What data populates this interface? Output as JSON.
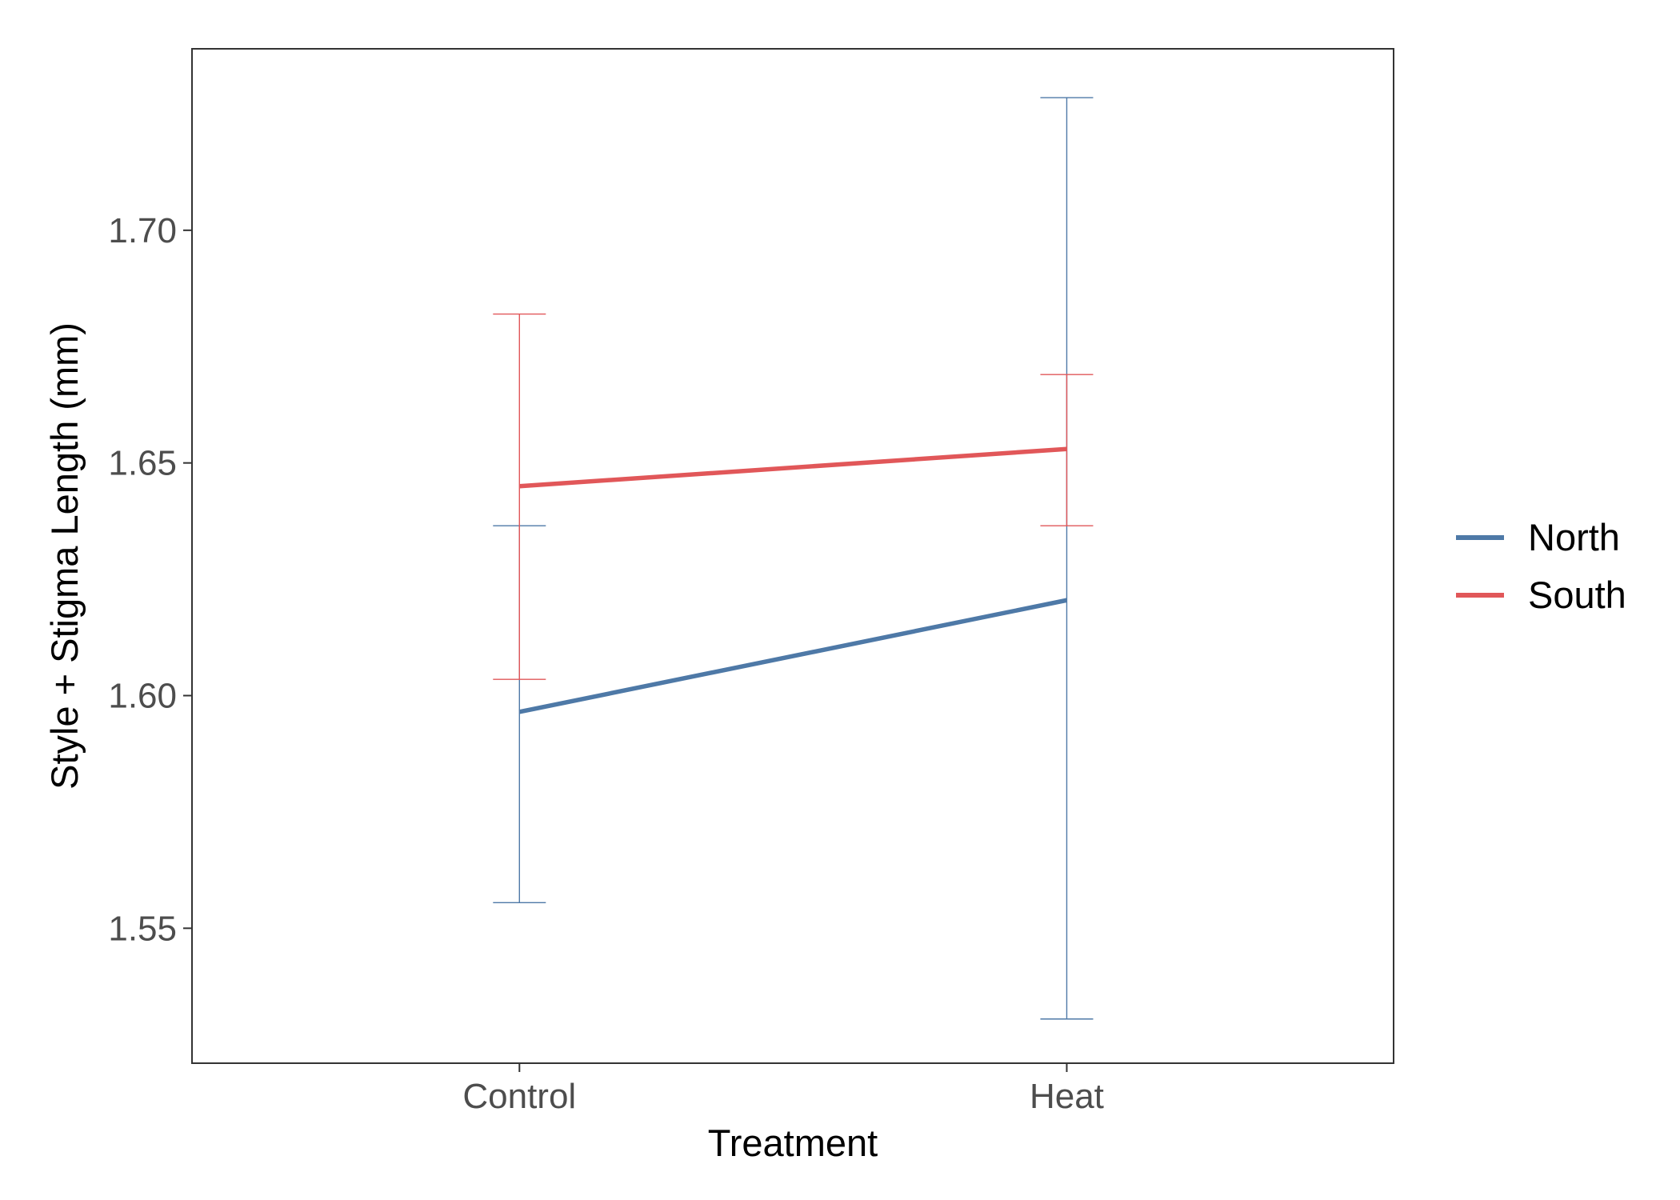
{
  "chart_data": {
    "type": "line",
    "xlabel": "Treatment",
    "ylabel": "Style + Stigma Length (mm)",
    "categories": [
      "Control",
      "Heat"
    ],
    "ylim": [
      1.521,
      1.739
    ],
    "yticks": [
      1.55,
      1.6,
      1.65,
      1.7
    ],
    "ytick_labels": [
      "1.55",
      "1.60",
      "1.65",
      "1.70"
    ],
    "series": [
      {
        "name": "North",
        "color": "#4e79a7",
        "values": [
          1.5965,
          1.6205
        ],
        "error_low": [
          1.5555,
          1.5305
        ],
        "error_high": [
          1.6365,
          1.7285
        ]
      },
      {
        "name": "South",
        "color": "#e15759",
        "values": [
          1.645,
          1.653
        ],
        "error_low": [
          1.6035,
          1.6365
        ],
        "error_high": [
          1.682,
          1.669
        ]
      }
    ],
    "grid": false,
    "legend_position": "right",
    "legend_entries": [
      "North",
      "South"
    ]
  }
}
